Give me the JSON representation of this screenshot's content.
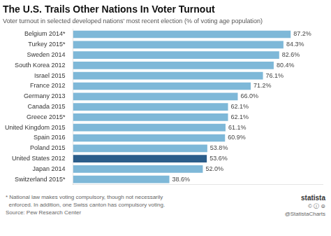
{
  "chart_data": {
    "type": "bar",
    "orientation": "horizontal",
    "title": "The U.S. Trails Other Nations In Voter Turnout",
    "subtitle": "Voter turnout in selected developed nations' most recent election (% of voting age population)",
    "footnote": "* National law makes voting compulsory, though not necessarily\n  enforced. In addition, one Swiss canton has compulsory voting.",
    "source": "Source: Pew Research Center",
    "annotations": [
      "statista",
      "© ⓘ ⊜",
      "@StatistaCharts"
    ],
    "categories": [
      "Belgium 2014*",
      "Turkey 2015*",
      "Sweden 2014",
      "South Korea 2012",
      "Israel 2015",
      "France 2012",
      "Germany 2013",
      "Canada 2015",
      "Greece 2015*",
      "United Kingdom 2015",
      "Spain 2016",
      "Poland 2015",
      "United States 2012",
      "Japan 2014",
      "Switzerland 2015*"
    ],
    "values": [
      87.2,
      84.3,
      82.6,
      80.4,
      76.1,
      71.2,
      66.0,
      62.1,
      62.1,
      61.1,
      60.9,
      53.8,
      53.6,
      52.0,
      38.6
    ],
    "value_labels": [
      "87.2%",
      "84.3%",
      "82.6%",
      "80.4%",
      "76.1%",
      "71.2%",
      "66.0%",
      "62.1%",
      "62.1%",
      "61.1%",
      "60.9%",
      "53.8%",
      "53.6%",
      "52.0%",
      "38.6%"
    ],
    "colors": [
      "#7eb8d8",
      "#7eb8d8",
      "#7eb8d8",
      "#7eb8d8",
      "#7eb8d8",
      "#7eb8d8",
      "#7eb8d8",
      "#7eb8d8",
      "#7eb8d8",
      "#7eb8d8",
      "#7eb8d8",
      "#7eb8d8",
      "#2b5d8a",
      "#7eb8d8",
      "#7eb8d8"
    ],
    "xlim": [
      0,
      100
    ],
    "grid": false,
    "data_labels": true,
    "tick_labels": "y"
  }
}
